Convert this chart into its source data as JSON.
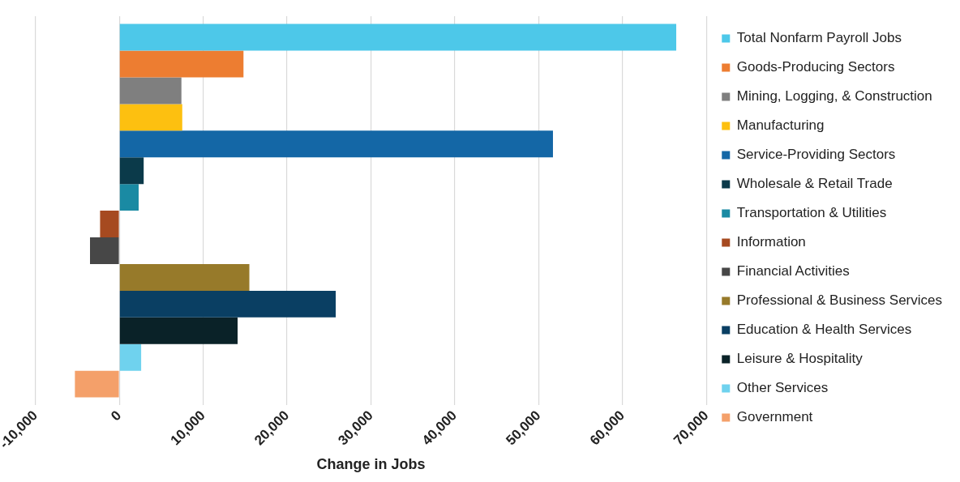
{
  "chart_data": {
    "type": "bar",
    "orientation": "horizontal",
    "xlabel": "Change in Jobs",
    "categories": [
      null
    ],
    "series": [
      {
        "name": "Total Nonfarm Payroll Jobs",
        "color": "#4dc8e9",
        "values": [
          66400
        ]
      },
      {
        "name": "Goods-Producing Sectors",
        "color": "#ed7d31",
        "values": [
          14800
        ]
      },
      {
        "name": "Mining, Logging, & Construction",
        "color": "#7f7f7f",
        "values": [
          7400
        ]
      },
      {
        "name": "Manufacturing",
        "color": "#fdc010",
        "values": [
          7500
        ]
      },
      {
        "name": "Service-Providing Sectors",
        "color": "#1467a6",
        "values": [
          51700
        ]
      },
      {
        "name": "Wholesale & Retail Trade",
        "color": "#0b3a4a",
        "values": [
          2900
        ]
      },
      {
        "name": "Transportation & Utilities",
        "color": "#1a8aa3",
        "values": [
          2300
        ]
      },
      {
        "name": "Information",
        "color": "#a64a20",
        "values": [
          -2300
        ]
      },
      {
        "name": "Financial Activities",
        "color": "#474747",
        "values": [
          -3500
        ]
      },
      {
        "name": "Professional & Business Services",
        "color": "#977a2a",
        "values": [
          15500
        ]
      },
      {
        "name": "Education & Health Services",
        "color": "#0a3f63",
        "values": [
          25800
        ]
      },
      {
        "name": "Leisure & Hospitality",
        "color": "#0a2228",
        "values": [
          14100
        ]
      },
      {
        "name": "Other Services",
        "color": "#6fd2ee",
        "values": [
          2600
        ]
      },
      {
        "name": "Government",
        "color": "#f4a06a",
        "values": [
          -5300
        ]
      }
    ],
    "xlim": [
      -10000,
      70000
    ],
    "xticks": [
      {
        "value": -10000,
        "label": "-10,000"
      },
      0,
      {
        "value": 10000,
        "label": "10,000"
      },
      {
        "value": 20000,
        "label": "20,000"
      },
      {
        "value": 30000,
        "label": "30,000"
      },
      {
        "value": 40000,
        "label": "40,000"
      },
      {
        "value": 50000,
        "label": "50,000"
      },
      {
        "value": 60000,
        "label": "60,000"
      },
      {
        "value": 70000,
        "label": "70,000"
      }
    ],
    "grid": "x",
    "legend": "right",
    "tick_labels": "x"
  }
}
